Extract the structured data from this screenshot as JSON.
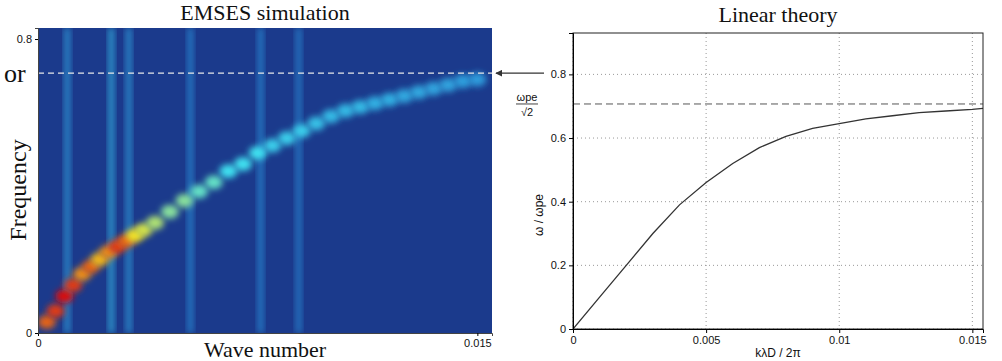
{
  "chart_data": [
    {
      "type": "heatmap",
      "title": "EMSES simulation",
      "xlabel": "Wave number",
      "ylabel": "Frequency",
      "annotations": [
        "or"
      ],
      "xlim": [
        0,
        0.0155
      ],
      "ylim": [
        0,
        0.83
      ],
      "xticks": [
        0,
        0.015
      ],
      "yticks": [
        0,
        0.8
      ],
      "zlim": [
        0,
        1
      ],
      "grid": false,
      "x": [
        0.0003,
        0.0006,
        0.0009,
        0.0012,
        0.0015,
        0.0018,
        0.0021,
        0.0024,
        0.0027,
        0.003,
        0.0033,
        0.0036,
        0.004,
        0.0045,
        0.005,
        0.0055,
        0.006,
        0.0065,
        0.007,
        0.0075,
        0.008,
        0.0085,
        0.009,
        0.0095,
        0.01,
        0.0105,
        0.011,
        0.0115,
        0.012,
        0.0125,
        0.013,
        0.0135,
        0.014,
        0.0145,
        0.015
      ],
      "y": [
        0.03,
        0.06,
        0.1,
        0.13,
        0.16,
        0.18,
        0.2,
        0.22,
        0.235,
        0.25,
        0.265,
        0.28,
        0.3,
        0.33,
        0.36,
        0.385,
        0.41,
        0.44,
        0.46,
        0.49,
        0.51,
        0.53,
        0.55,
        0.57,
        0.59,
        0.605,
        0.615,
        0.625,
        0.635,
        0.645,
        0.655,
        0.665,
        0.675,
        0.685,
        0.69
      ],
      "z": [
        0.9,
        0.95,
        1.0,
        0.95,
        0.85,
        0.9,
        0.8,
        0.85,
        0.95,
        0.9,
        0.75,
        0.7,
        0.65,
        0.6,
        0.6,
        0.55,
        0.55,
        0.5,
        0.5,
        0.5,
        0.45,
        0.45,
        0.45,
        0.42,
        0.4,
        0.4,
        0.4,
        0.38,
        0.38,
        0.36,
        0.36,
        0.35,
        0.35,
        0.34,
        0.33
      ],
      "streaks": [
        {
          "x": 0.001,
          "z": 0.35
        },
        {
          "x": 0.0025,
          "z": 0.4
        },
        {
          "x": 0.0031,
          "z": 0.35
        },
        {
          "x": 0.0052,
          "z": 0.3
        },
        {
          "x": 0.0076,
          "z": 0.3
        },
        {
          "x": 0.0089,
          "z": 0.28
        }
      ],
      "hline": {
        "value": 0.707
      }
    },
    {
      "type": "line",
      "title": "Linear theory",
      "xlabel": "kλD / 2π",
      "ylabel": "ω / ωpe",
      "xlim": [
        0,
        0.0154
      ],
      "ylim": [
        0,
        0.93
      ],
      "xticks": [
        0,
        0.005,
        0.01,
        0.015
      ],
      "yticks": [
        0,
        0.2,
        0.4,
        0.6,
        0.8
      ],
      "grid": true,
      "color": "#333333",
      "line_style": "solid",
      "x": [
        0,
        0.001,
        0.002,
        0.003,
        0.004,
        0.005,
        0.006,
        0.007,
        0.008,
        0.009,
        0.01,
        0.011,
        0.012,
        0.013,
        0.014,
        0.015,
        0.0154
      ],
      "values": [
        0,
        0.1,
        0.2,
        0.3,
        0.39,
        0.46,
        0.52,
        0.57,
        0.605,
        0.63,
        0.645,
        0.66,
        0.67,
        0.68,
        0.685,
        0.69,
        0.693
      ],
      "hline": {
        "value": 0.707,
        "label": [
          "ωpe",
          "√2"
        ]
      }
    }
  ]
}
